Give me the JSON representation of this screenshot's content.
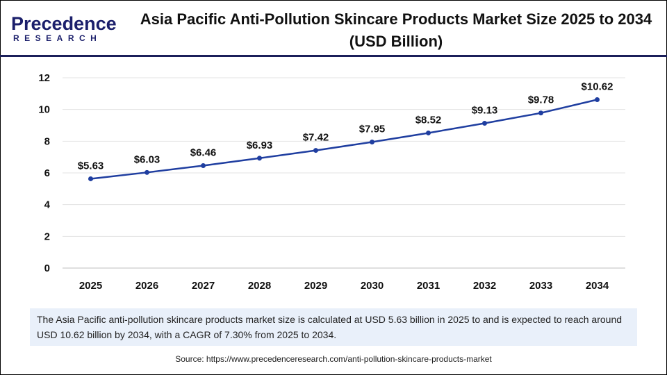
{
  "logo": {
    "main": "Precedence",
    "sub": "RESEARCH"
  },
  "title": "Asia Pacific Anti-Pollution Skincare Products Market Size 2025 to 2034 (USD Billion)",
  "chart_data": {
    "type": "line",
    "title": "Asia Pacific Anti-Pollution Skincare Products Market Size 2025 to 2034 (USD Billion)",
    "categories": [
      "2025",
      "2026",
      "2027",
      "2028",
      "2029",
      "2030",
      "2031",
      "2032",
      "2033",
      "2034"
    ],
    "values": [
      5.63,
      6.03,
      6.46,
      6.93,
      7.42,
      7.95,
      8.52,
      9.13,
      9.78,
      10.62
    ],
    "data_labels": [
      "$5.63",
      "$6.03",
      "$6.46",
      "$6.93",
      "$7.42",
      "$7.95",
      "$8.52",
      "$9.13",
      "$9.78",
      "$10.62"
    ],
    "yticks": [
      0,
      2,
      4,
      6,
      8,
      10,
      12
    ],
    "ylim": [
      0,
      12
    ],
    "grid": true,
    "line_color": "#1f3ea0",
    "xlabel": "",
    "ylabel": ""
  },
  "note": "The Asia Pacific anti-pollution skincare products market size is calculated at USD 5.63 billion in 2025 to and is expected to reach around USD 10.62 billion by 2034, with a CAGR of 7.30% from 2025 to 2034.",
  "source": "Source: https://www.precedenceresearch.com/anti-pollution-skincare-products-market"
}
